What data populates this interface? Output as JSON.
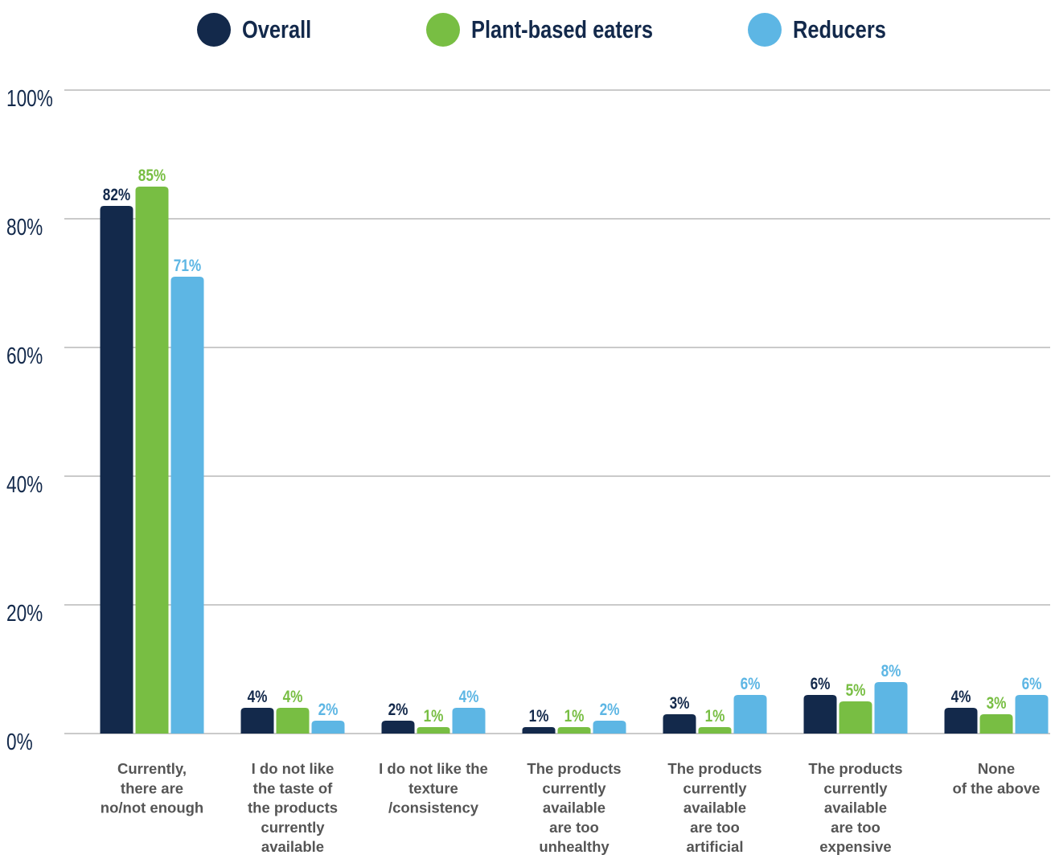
{
  "chart_data": {
    "type": "bar",
    "categories": [
      [
        "Currently,",
        "there are",
        "no/not enough"
      ],
      [
        "I do not like",
        "the taste of",
        "the products",
        "currently",
        "available"
      ],
      [
        "I do not like the",
        "texture",
        "/consistency"
      ],
      [
        "The products",
        "currently",
        "available",
        "are too",
        "unhealthy"
      ],
      [
        "The products",
        "currently",
        "available",
        "are too",
        "artificial"
      ],
      [
        "The products",
        "currently",
        "available",
        "are too",
        "expensive"
      ],
      [
        "None",
        "of the above"
      ]
    ],
    "series": [
      {
        "name": "Overall",
        "color": "#13294b",
        "values": [
          82,
          4,
          2,
          1,
          3,
          6,
          4
        ],
        "labels": [
          "82%",
          "4%",
          "2%",
          "1%",
          "3%",
          "6%",
          "4%"
        ]
      },
      {
        "name": "Plant-based eaters",
        "color": "#78be43",
        "values": [
          85,
          4,
          1,
          1,
          1,
          5,
          3
        ],
        "labels": [
          "85%",
          "4%",
          "1%",
          "1%",
          "1%",
          "5%",
          "3%"
        ]
      },
      {
        "name": "Reducers",
        "color": "#5db6e4",
        "values": [
          71,
          2,
          4,
          2,
          6,
          8,
          6
        ],
        "labels": [
          "71%",
          "2%",
          "4%",
          "2%",
          "6%",
          "8%",
          "6%"
        ]
      }
    ],
    "ylim": [
      0,
      100
    ],
    "yticks": [
      "0%",
      "20%",
      "40%",
      "60%",
      "80%",
      "100%"
    ],
    "ytick_values": [
      0,
      20,
      40,
      60,
      80,
      100
    ],
    "grid": true,
    "legend_position": "top",
    "gridline_color": "#aaaaaa"
  }
}
